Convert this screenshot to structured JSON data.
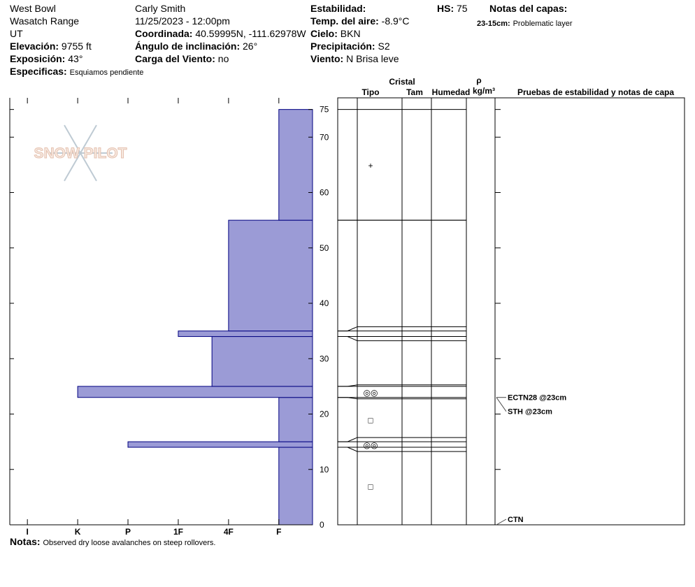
{
  "header": {
    "items": [
      {
        "value": "West Bowl"
      },
      {
        "value": "Wasatch Range"
      },
      {
        "value": "UT"
      },
      {
        "label": "Elevación:",
        "value": "9755 ft"
      },
      {
        "label": "Exposición:",
        "value": "43°"
      },
      {
        "value": "Carly Smith"
      },
      {
        "value": "11/25/2023 - 12:00pm"
      },
      {
        "label": "Coordinada:",
        "value": "40.59995N, -111.62978W"
      },
      {
        "label": "Ángulo de inclinación:",
        "value": "26°"
      },
      {
        "label": "Carga del Viento:",
        "value": "no"
      },
      {
        "label": "Estabilidad:"
      },
      {
        "label": "Temp. del aire:",
        "value": "-8.9°C"
      },
      {
        "label": "Cielo:",
        "value": "BKN"
      },
      {
        "label": "Precipitación:",
        "value": "S2"
      },
      {
        "label": "Viento:",
        "value": "N Brisa leve"
      },
      {
        "label": "HS:",
        "value": "75"
      },
      {
        "label": "Notas del capas:"
      }
    ],
    "specifics": {
      "label": "Especificas:",
      "value": "Esquiamos pendiente"
    },
    "layer_note": {
      "label": "23-15cm:",
      "value": "Problematic layer"
    }
  },
  "chart_data": {
    "type": "snow-profile",
    "logo": "SNOW PILOT",
    "color": "#9b9bd6",
    "ylim": [
      0,
      77.1
    ],
    "yticks": [
      0,
      10,
      20,
      30,
      40,
      50,
      60,
      70,
      75
    ],
    "xlim": [
      6.35,
      0.33
    ],
    "xticks": [
      {
        "value": 6,
        "label": "I"
      },
      {
        "value": 5,
        "label": "K"
      },
      {
        "value": 4,
        "label": "P"
      },
      {
        "value": 3,
        "label": "1F"
      },
      {
        "value": 2,
        "label": "4F"
      },
      {
        "value": 1,
        "label": "F"
      }
    ],
    "layers": [
      {
        "bottom": 0,
        "top": 14,
        "hardness": 1,
        "grain": "□"
      },
      {
        "bottom": 14,
        "top": 15,
        "hardness": 4,
        "grain": "◎◎"
      },
      {
        "bottom": 15,
        "top": 23,
        "hardness": 1,
        "grain": "□"
      },
      {
        "bottom": 23,
        "top": 25,
        "hardness": 5,
        "grain": "◎◎"
      },
      {
        "bottom": 25,
        "top": 34,
        "hardness": 2.33
      },
      {
        "bottom": 34,
        "top": 35,
        "hardness": 3
      },
      {
        "bottom": 35,
        "top": 55,
        "hardness": 2
      },
      {
        "bottom": 55,
        "top": 75,
        "hardness": 1,
        "grain": "+"
      }
    ],
    "table_headers": {
      "cristal": "Cristal",
      "tipo": "Tipo",
      "tam": "Tam",
      "humedad": "Humedad",
      "rho": "ρ",
      "density_unit": "kg/m³",
      "tests": "Pruebas de estabilidad y notas de capa"
    },
    "tests": [
      {
        "label": "ECTN28 @23cm",
        "height": 23
      },
      {
        "label": "STH @23cm",
        "height": 23
      },
      {
        "label": "CTN",
        "height": 0
      }
    ]
  },
  "notes": {
    "label": "Notas:",
    "value": "Observed dry loose avalanches on steep rollovers."
  }
}
